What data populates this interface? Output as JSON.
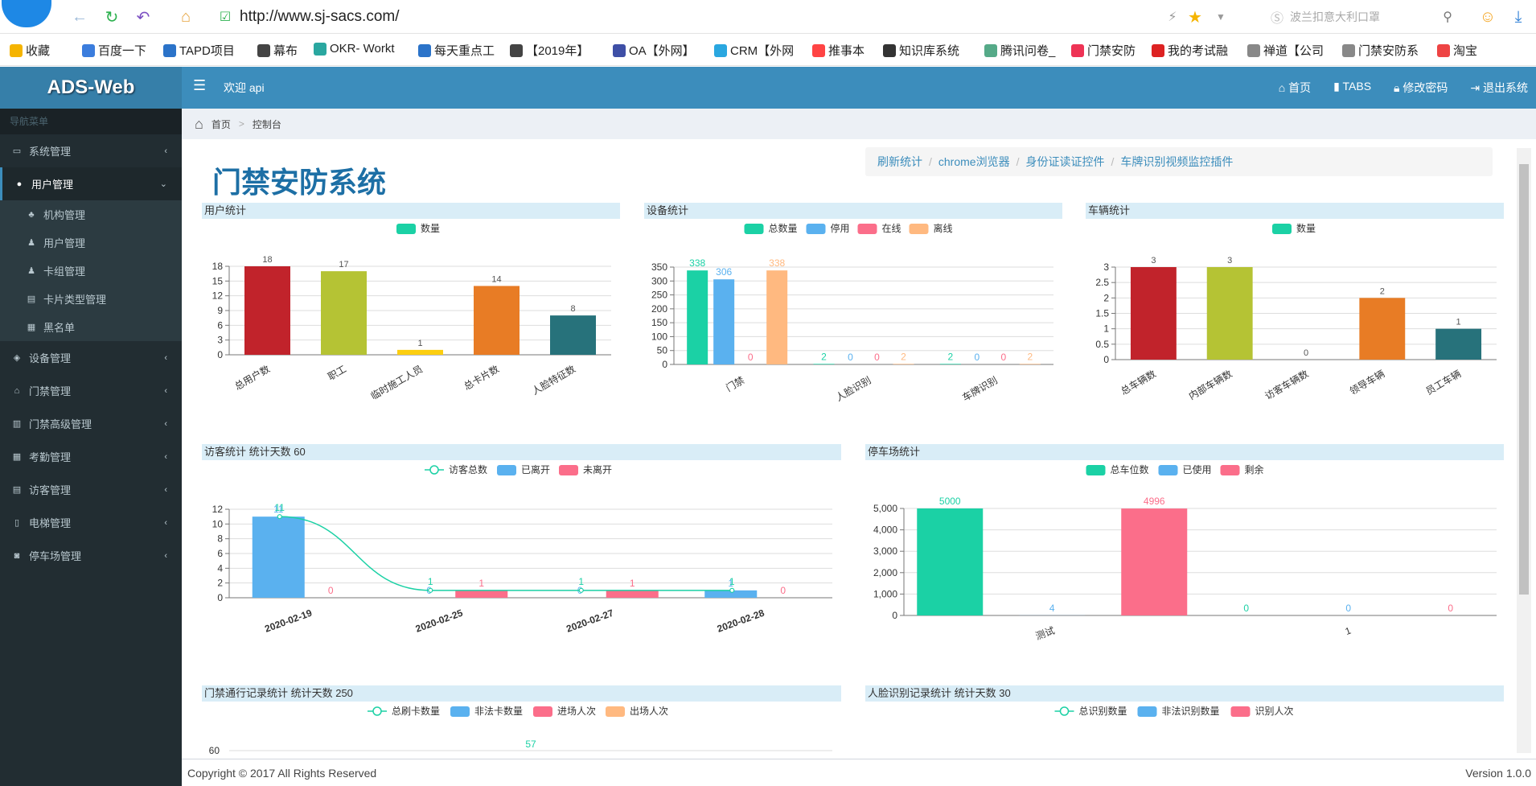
{
  "browser": {
    "url": "http://www.sj-sacs.com/",
    "search_placeholder": "波兰扣意大利口罩",
    "bookmarks": [
      "收藏",
      "百度一下",
      "TAPD项目",
      "幕布",
      "OKR- Workt",
      "每天重点工",
      "【2019年】",
      "OA【外网】",
      "CRM【外网",
      "推事本",
      "知识库系统",
      "腾讯问卷_",
      "门禁安防",
      "我的考试融",
      "禅道【公司",
      "门禁安防系",
      "淘宝"
    ]
  },
  "header": {
    "logo": "ADS-Web",
    "welcome": "欢迎 api",
    "links": [
      "首页",
      "TABS",
      "修改密码",
      "退出系统"
    ]
  },
  "sidebar": {
    "header": "导航菜单",
    "items": [
      {
        "label": "系统管理"
      },
      {
        "label": "用户管理"
      },
      {
        "label": "设备管理"
      },
      {
        "label": "门禁管理"
      },
      {
        "label": "门禁高级管理"
      },
      {
        "label": "考勤管理"
      },
      {
        "label": "访客管理"
      },
      {
        "label": "电梯管理"
      },
      {
        "label": "停车场管理"
      }
    ],
    "sub_items": [
      "机构管理",
      "用户管理",
      "卡组管理",
      "卡片类型管理",
      "黑名单"
    ]
  },
  "breadcrumb": [
    "首页",
    "控制台"
  ],
  "page": {
    "title": "门禁安防系统",
    "toolbar": [
      "刷新统计",
      "chrome浏览器",
      "身份证读证控件",
      "车牌识别视频监控插件"
    ]
  },
  "footer": {
    "copyright": "Copyright © 2017 All Rights Reserved",
    "version": "Version 1.0.0"
  },
  "chart_data": [
    {
      "id": "user",
      "type": "bar",
      "title": "用户统计",
      "legend": [
        "数量"
      ],
      "categories": [
        "总用户数",
        "职工",
        "临时施工人员",
        "总卡片数",
        "人脸特征数"
      ],
      "values": [
        18,
        17,
        1,
        14,
        8
      ],
      "colors": [
        "#c1232b",
        "#b5c334",
        "#fcce10",
        "#e87c25",
        "#27727b"
      ],
      "yticks": [
        0,
        3,
        6,
        9,
        12,
        15,
        18
      ],
      "ylim": [
        0,
        18
      ]
    },
    {
      "id": "device",
      "type": "bar",
      "title": "设备统计",
      "categories": [
        "门禁",
        "人脸识别",
        "车牌识别"
      ],
      "series": [
        {
          "name": "总数量",
          "values": [
            338,
            2,
            2
          ],
          "color": "#1bd1a5"
        },
        {
          "name": "停用",
          "values": [
            306,
            0,
            0
          ],
          "color": "#5ab1ef"
        },
        {
          "name": "在线",
          "values": [
            0,
            0,
            0
          ],
          "color": "#fb6e8a"
        },
        {
          "name": "离线",
          "values": [
            338,
            2,
            2
          ],
          "color": "#ffb980"
        }
      ],
      "yticks": [
        0,
        50,
        100,
        150,
        200,
        250,
        300,
        350
      ],
      "ylim": [
        0,
        350
      ]
    },
    {
      "id": "vehicle",
      "type": "bar",
      "title": "车辆统计",
      "legend": [
        "数量"
      ],
      "categories": [
        "总车辆数",
        "内部车辆数",
        "访客车辆数",
        "领导车辆",
        "员工车辆"
      ],
      "values": [
        3,
        3,
        0,
        2,
        1
      ],
      "colors": [
        "#c1232b",
        "#b5c334",
        "#fcce10",
        "#e87c25",
        "#27727b"
      ],
      "yticks": [
        0,
        0.5,
        1,
        1.5,
        2,
        2.5,
        3
      ],
      "ylim": [
        0,
        3
      ]
    },
    {
      "id": "visitor",
      "type": "bar",
      "title": "访客统计 统计天数 60",
      "categories": [
        "2020-02-19",
        "2020-02-25",
        "2020-02-27",
        "2020-02-28"
      ],
      "series": [
        {
          "name": "访客总数",
          "kind": "line",
          "values": [
            11,
            1,
            1,
            1
          ],
          "color": "#1bd1a5"
        },
        {
          "name": "已离开",
          "values": [
            11,
            0,
            0,
            1
          ],
          "color": "#5ab1ef"
        },
        {
          "name": "未离开",
          "values": [
            0,
            1,
            1,
            0
          ],
          "color": "#fb6e8a"
        }
      ],
      "yticks": [
        0,
        2,
        4,
        6,
        8,
        10,
        12
      ],
      "ylim": [
        0,
        12
      ]
    },
    {
      "id": "parking",
      "type": "bar",
      "title": "停车场统计",
      "categories": [
        "测试",
        "1"
      ],
      "series": [
        {
          "name": "总车位数",
          "values": [
            5000,
            0
          ],
          "color": "#1bd1a5"
        },
        {
          "name": "已使用",
          "values": [
            4,
            0
          ],
          "color": "#5ab1ef"
        },
        {
          "name": "剩余",
          "values": [
            4996,
            0
          ],
          "color": "#fb6e8a"
        }
      ],
      "yticks": [
        "0",
        "1,000",
        "2,000",
        "3,000",
        "4,000",
        "5,000"
      ],
      "ylim": [
        0,
        5000
      ]
    },
    {
      "id": "access",
      "type": "bar",
      "title": "门禁通行记录统计 统计天数 250",
      "series": [
        {
          "name": "总刷卡数量",
          "kind": "line",
          "color": "#1bd1a5"
        },
        {
          "name": "非法卡数量",
          "color": "#5ab1ef"
        },
        {
          "name": "进场人次",
          "color": "#fb6e8a"
        },
        {
          "name": "出场人次",
          "color": "#ffb980"
        }
      ],
      "visible_tick": "60",
      "visible_value": 57
    },
    {
      "id": "face",
      "type": "bar",
      "title": "人脸识别记录统计 统计天数 30",
      "series": [
        {
          "name": "总识别数量",
          "kind": "line",
          "color": "#1bd1a5"
        },
        {
          "name": "非法识别数量",
          "color": "#5ab1ef"
        },
        {
          "name": "识别人次",
          "color": "#fb6e8a"
        }
      ]
    }
  ]
}
